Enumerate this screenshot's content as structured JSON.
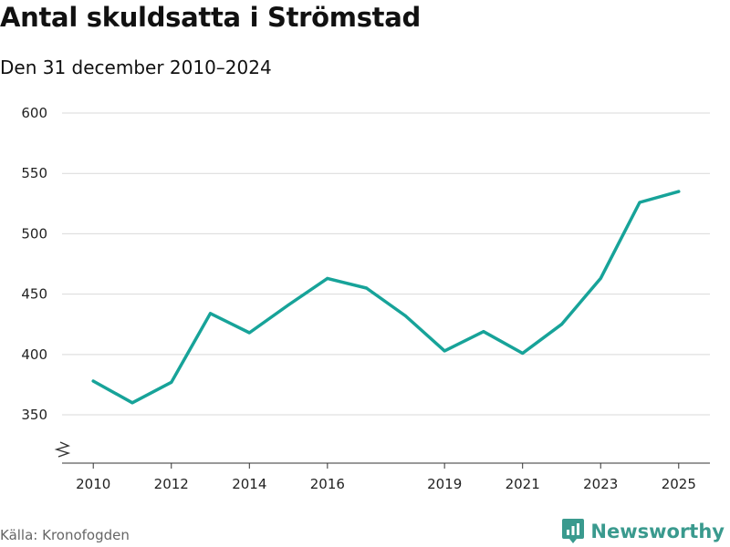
{
  "header": {
    "title": "Antal skuldsatta i Strömstad",
    "subtitle": "Den 31 december 2010–2024"
  },
  "footer": {
    "source": "Källa: Kronofogden",
    "brand": "Newsworthy",
    "brand_icon": "newsworthy-logo-icon"
  },
  "colors": {
    "line": "#17a399",
    "grid": "#d9d9d9",
    "brand": "#3a9a8e"
  },
  "chart_data": {
    "type": "line",
    "title": "Antal skuldsatta i Strömstad",
    "subtitle": "Den 31 december 2010–2024",
    "xlabel": "",
    "ylabel": "",
    "grid": true,
    "axis_break": true,
    "x": [
      2010,
      2011,
      2012,
      2013,
      2014,
      2015,
      2016,
      2017,
      2018,
      2019,
      2020,
      2021,
      2022,
      2023,
      2024,
      2025
    ],
    "series": [
      {
        "name": "Antal skuldsatta",
        "values": [
          378,
          360,
          377,
          434,
          418,
          441,
          463,
          455,
          432,
          403,
          419,
          401,
          425,
          463,
          526,
          535
        ]
      }
    ],
    "xticks": [
      2010,
      2012,
      2014,
      2016,
      2019,
      2021,
      2023,
      2025
    ],
    "yticks": [
      350,
      400,
      450,
      500,
      550,
      600
    ],
    "xlim": [
      2009.2,
      2025.8
    ],
    "ylim": [
      310,
      600
    ]
  }
}
